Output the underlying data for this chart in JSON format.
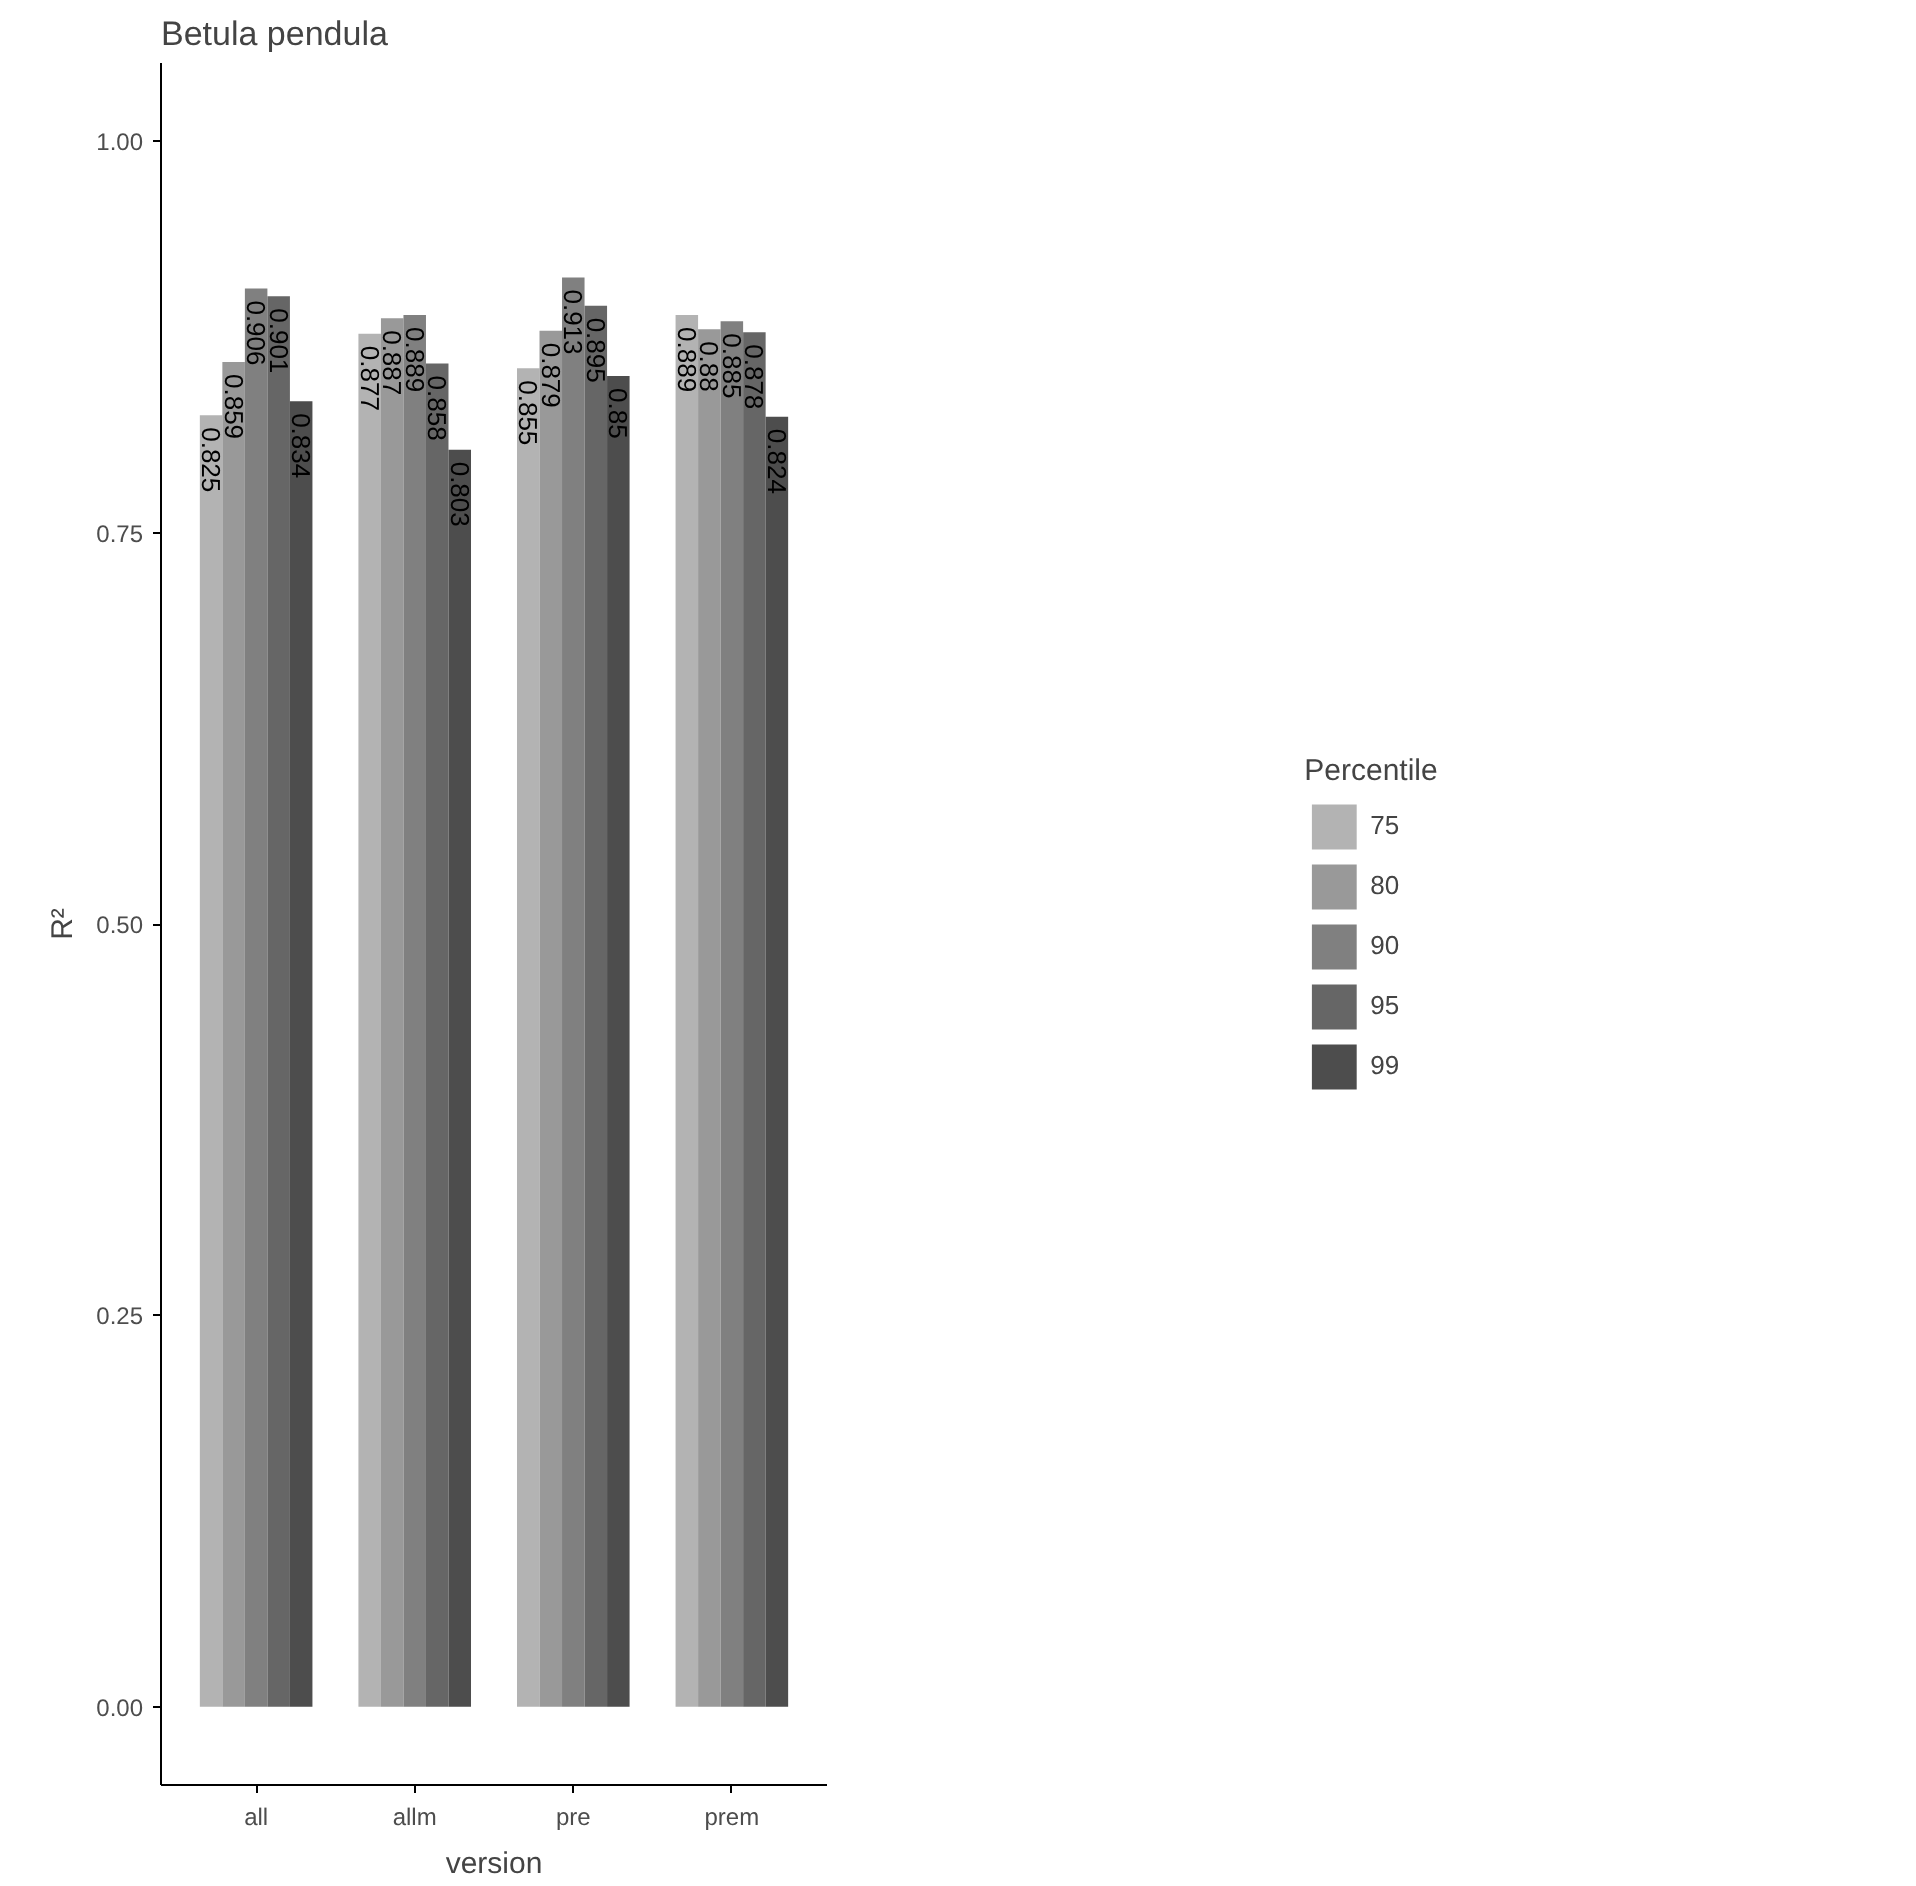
{
  "chart_data": {
    "type": "bar",
    "title": "Betula pendula",
    "xlabel": "version",
    "ylabel": "R²",
    "legend_title": "Percentile",
    "categories": [
      "all",
      "allm",
      "pre",
      "prem"
    ],
    "series": [
      {
        "name": "75",
        "color": "#b3b3b3",
        "values": [
          0.825,
          0.877,
          0.855,
          0.889
        ]
      },
      {
        "name": "80",
        "color": "#999999",
        "values": [
          0.859,
          0.887,
          0.879,
          0.88
        ]
      },
      {
        "name": "90",
        "color": "#808080",
        "values": [
          0.906,
          0.889,
          0.913,
          0.885
        ]
      },
      {
        "name": "95",
        "color": "#666666",
        "values": [
          0.901,
          0.858,
          0.895,
          0.878
        ]
      },
      {
        "name": "99",
        "color": "#4d4d4d",
        "values": [
          0.834,
          0.803,
          0.85,
          0.824
        ]
      }
    ],
    "ylim": [
      -0.05,
      1.05
    ],
    "yticks": [
      {
        "value": 0,
        "label": "0.00"
      },
      {
        "value": 0.25,
        "label": "0.25"
      },
      {
        "value": 0.5,
        "label": "0.50"
      },
      {
        "value": 0.75,
        "label": "0.75"
      },
      {
        "value": 1,
        "label": "1.00"
      }
    ],
    "data_labels": true,
    "grid": false,
    "legend": "right"
  }
}
